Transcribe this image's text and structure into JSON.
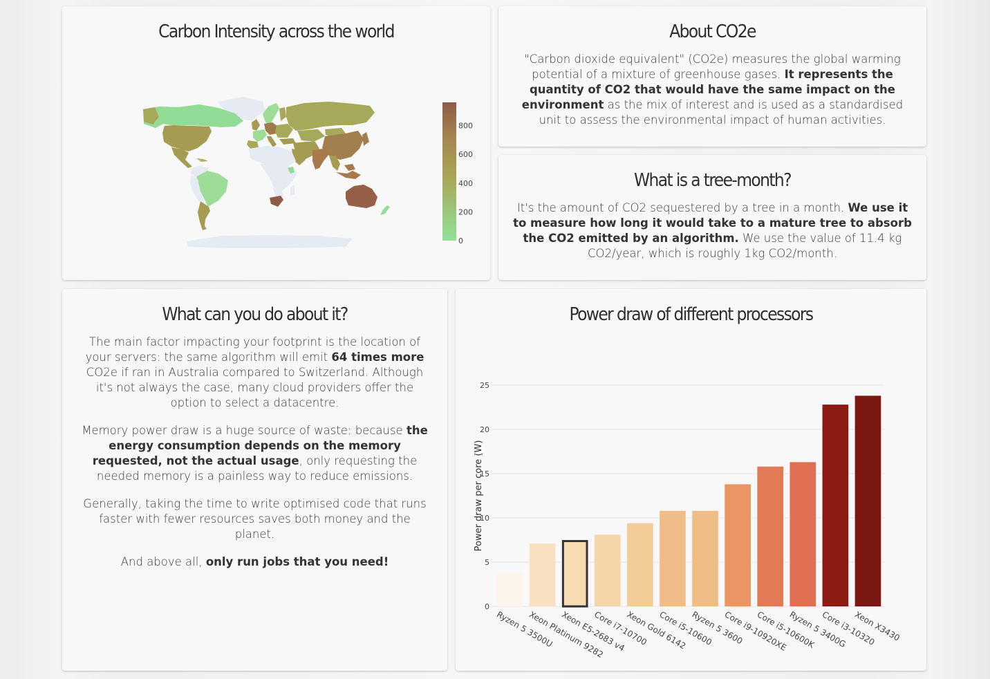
{
  "map_card": {
    "title": "Carbon Intensity across the world",
    "colorbar": {
      "ticks": [
        "0",
        "200",
        "400",
        "600",
        "800"
      ],
      "color_low": "#8fe19a",
      "color_mid": "#a9a656",
      "color_high": "#8f5b47"
    }
  },
  "about_card": {
    "title": "About CO2e",
    "text_1": "\"Carbon dioxide equivalent\" (CO2e) measures the global warming potential of a mixture of greenhouse gases. ",
    "text_bold": "It represents the quantity of CO2 that would have the same impact on the environment",
    "text_2": " as the mix of interest and is used as a standardised unit to assess the environmental impact of human activities."
  },
  "tree_card": {
    "title": "What is a tree-month?",
    "text_1": "It's the amount of CO2 sequestered by a tree in a month. ",
    "text_bold": "We use it to measure how long it would take to a mature tree to absorb the CO2 emitted by an algorithm.",
    "text_2": " We use the value of 11.4 kg CO2/year, which is roughly 1kg CO2/month."
  },
  "do_card": {
    "title": "What can you do about it?",
    "p1_a": "The main factor impacting your footprint is the location of your servers: the same algorithm will emit ",
    "p1_bold": "64 times more",
    "p1_b": " CO2e if ran in Australia compared to Switzerland. Although it's not always the case, many cloud providers offer the option to select a datacentre.",
    "p2_a": "Memory power draw is a huge source of waste: because ",
    "p2_bold": "the energy consumption depends on the memory requested, not the actual usage",
    "p2_b": ", only requesting the needed memory is a painless way to reduce emissions.",
    "p3": "Generally, taking the time to write optimised code that runs faster with fewer resources saves both money and the planet.",
    "p4_a": "And above all, ",
    "p4_bold": "only run jobs that you need!"
  },
  "power_card": {
    "title": "Power draw of different processors"
  },
  "chart_data": {
    "type": "bar",
    "title": "Power draw of different processors",
    "xlabel": "",
    "ylabel": "Power draw per core (W)",
    "ylim": [
      0,
      25
    ],
    "yticks": [
      0,
      5,
      10,
      15,
      20,
      25
    ],
    "grid": true,
    "categories": [
      "Ryzen 5 3500U",
      "Xeon Platinum 9282",
      "Xeon E5-2683 v4",
      "Core i7-10700",
      "Xeon Gold 6142",
      "Core i5-10600",
      "Ryzen 5 3600",
      "Core i9-10920XE",
      "Core i5-10600K",
      "Ryzen 5 3400G",
      "Core i3-10320",
      "Xeon X3430"
    ],
    "values": [
      3.8,
      7.1,
      7.5,
      8.1,
      9.4,
      10.8,
      10.8,
      13.8,
      15.8,
      16.3,
      22.8,
      23.8
    ],
    "colors": [
      "#fdf5ec",
      "#f9e0c0",
      "#f7dcb3",
      "#f5d6a8",
      "#f3cc98",
      "#f2bc88",
      "#f0bc86",
      "#ec9564",
      "#e27a56",
      "#e07052",
      "#8c1b12",
      "#7a1710"
    ],
    "highlighted": "Xeon E5-2683 v4"
  }
}
